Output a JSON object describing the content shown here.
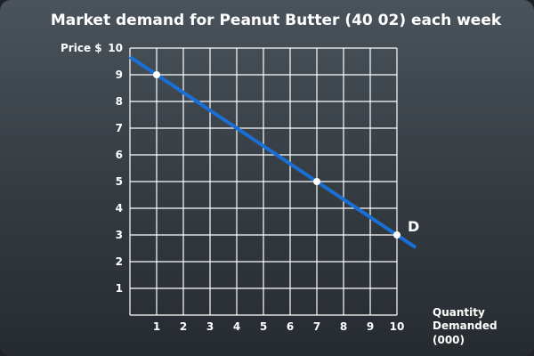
{
  "chart_data": {
    "type": "line",
    "title": "Market demand for Peanut Butter (40 02) each week",
    "ylabel": "Price $",
    "xlabel_lines": [
      "Quantity",
      "Demanded",
      "(000)"
    ],
    "xlim": [
      0,
      10
    ],
    "ylim": [
      0,
      10
    ],
    "x_ticks": [
      "1",
      "2",
      "3",
      "4",
      "5",
      "6",
      "7",
      "8",
      "9",
      "10"
    ],
    "y_ticks": [
      "1",
      "2",
      "3",
      "4",
      "5",
      "6",
      "7",
      "8",
      "9",
      "10"
    ],
    "grid": true,
    "series": [
      {
        "name": "D",
        "line_start": [
          0,
          9.67
        ],
        "line_end": [
          10.7,
          2.53
        ],
        "points": [
          {
            "x": 1,
            "y": 9
          },
          {
            "x": 7,
            "y": 5
          },
          {
            "x": 10,
            "y": 3
          }
        ]
      }
    ],
    "colors": {
      "line": "#1a6fd6",
      "grid": "#ffffff",
      "point_fill": "#ffffff",
      "text": "#ffffff"
    }
  }
}
